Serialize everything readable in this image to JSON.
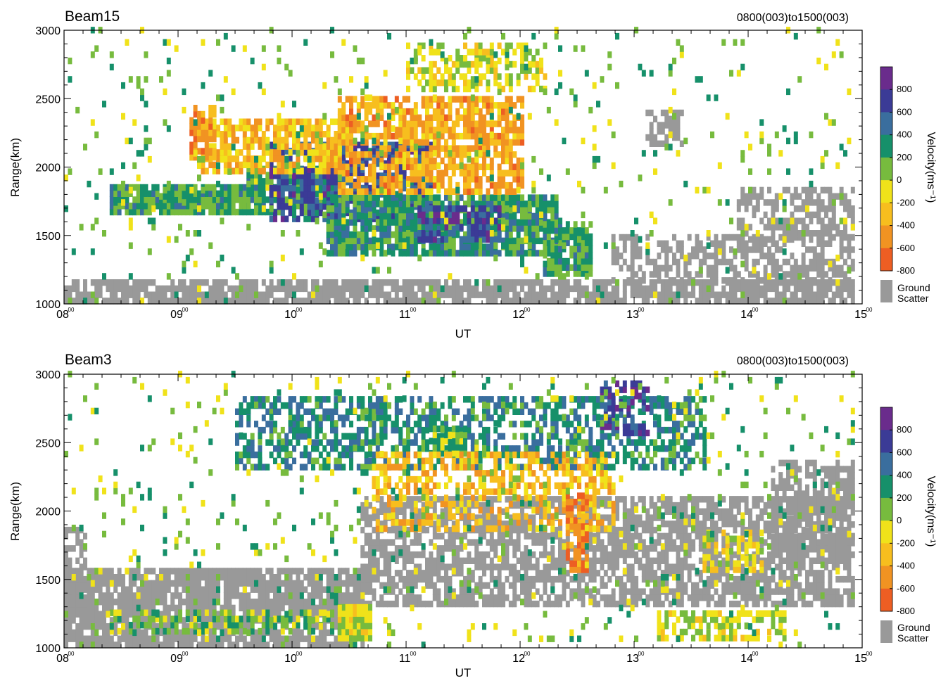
{
  "figure": {
    "panels": [
      {
        "beam_label": "Beam15",
        "time_range_label": "0800(003)to1500(003)"
      },
      {
        "beam_label": "Beam3",
        "time_range_label": "0800(003)to1500(003)"
      }
    ],
    "xlabel": "UT",
    "ylabel": "Range(km)",
    "colorbar": {
      "label": "Velocity(ms⁻¹)",
      "ticks": [
        "800",
        "600",
        "400",
        "200",
        "0",
        "-200",
        "-400",
        "-600",
        "-800"
      ],
      "colors": [
        "#6a2c8c",
        "#3b3b96",
        "#3a6e9e",
        "#16906a",
        "#77bb3e",
        "#f0e21a",
        "#f7be1e",
        "#f19322",
        "#ed5e23"
      ],
      "ground_scatter_label_1": "Ground",
      "ground_scatter_label_2": "Scatter",
      "ground_scatter_color": "#999999"
    }
  },
  "chart_data": [
    {
      "type": "heatmap",
      "title": "Beam15",
      "subtitle": "0800(003)to1500(003)",
      "xlabel": "UT",
      "ylabel": "Range(km)",
      "xlim": [
        8,
        15
      ],
      "ylim": [
        1000,
        3000
      ],
      "xticks": [
        "08",
        "09",
        "10",
        "11",
        "12",
        "13",
        "14",
        "15"
      ],
      "yticks": [
        1000,
        1500,
        2000,
        2500,
        3000
      ],
      "description_values": "approximate scatter regions (UT hours, km, velocity m/s or ground scatter)",
      "regions": [
        {
          "kind": "ground",
          "x": [
            8.0,
            14.9
          ],
          "y": [
            1000,
            1180
          ],
          "density": 0.8
        },
        {
          "kind": "ground",
          "x": [
            12.8,
            14.9
          ],
          "y": [
            1150,
            1500
          ],
          "density": 0.55
        },
        {
          "kind": "ground",
          "x": [
            13.9,
            14.9
          ],
          "y": [
            1450,
            1850
          ],
          "density": 0.6
        },
        {
          "kind": "ground",
          "x": [
            13.1,
            13.4
          ],
          "y": [
            2150,
            2400
          ],
          "density": 0.6
        },
        {
          "kind": "velocity",
          "v": 150,
          "x": [
            8.4,
            9.6
          ],
          "y": [
            1650,
            1850
          ],
          "density": 0.9
        },
        {
          "kind": "velocity",
          "v": 100,
          "x": [
            9.6,
            10.4
          ],
          "y": [
            1650,
            2000
          ],
          "density": 0.85
        },
        {
          "kind": "velocity",
          "v": 550,
          "x": [
            9.8,
            11.2
          ],
          "y": [
            1600,
            2150
          ],
          "density": 0.8
        },
        {
          "kind": "velocity",
          "v": 220,
          "x": [
            10.3,
            12.3
          ],
          "y": [
            1350,
            1800
          ],
          "density": 0.85
        },
        {
          "kind": "velocity",
          "v": 600,
          "x": [
            11.1,
            11.8
          ],
          "y": [
            1450,
            1700
          ],
          "density": 0.7
        },
        {
          "kind": "velocity",
          "v": 180,
          "x": [
            12.2,
            12.6
          ],
          "y": [
            1200,
            1600
          ],
          "density": 0.9
        },
        {
          "kind": "velocity",
          "v": -450,
          "x": [
            9.2,
            10.4
          ],
          "y": [
            1950,
            2350
          ],
          "density": 0.7
        },
        {
          "kind": "velocity",
          "v": -550,
          "x": [
            10.4,
            12.0
          ],
          "y": [
            1800,
            2500
          ],
          "density": 0.7
        },
        {
          "kind": "velocity",
          "v": -200,
          "x": [
            11.0,
            12.2
          ],
          "y": [
            2550,
            2900
          ],
          "density": 0.5
        },
        {
          "kind": "velocity",
          "v": -650,
          "x": [
            9.1,
            9.3
          ],
          "y": [
            2050,
            2450
          ],
          "density": 0.7
        },
        {
          "kind": "velocity",
          "v": 0,
          "x": [
            8.0,
            14.9
          ],
          "y": [
            1000,
            3000
          ],
          "density": 0.05
        }
      ]
    },
    {
      "type": "heatmap",
      "title": "Beam3",
      "subtitle": "0800(003)to1500(003)",
      "xlabel": "UT",
      "ylabel": "Range(km)",
      "xlim": [
        8,
        15
      ],
      "ylim": [
        1000,
        3000
      ],
      "xticks": [
        "08",
        "09",
        "10",
        "11",
        "12",
        "13",
        "14",
        "15"
      ],
      "yticks": [
        1000,
        1500,
        2000,
        2500,
        3000
      ],
      "description_values": "approximate scatter regions (UT hours, km, velocity m/s or ground scatter)",
      "regions": [
        {
          "kind": "ground",
          "x": [
            8.0,
            10.6
          ],
          "y": [
            1000,
            1550
          ],
          "density": 0.85
        },
        {
          "kind": "ground",
          "x": [
            10.6,
            14.9
          ],
          "y": [
            1300,
            2100
          ],
          "density": 0.7
        },
        {
          "kind": "ground",
          "x": [
            8.0,
            8.2
          ],
          "y": [
            1300,
            1850
          ],
          "density": 0.7
        },
        {
          "kind": "ground",
          "x": [
            14.2,
            14.9
          ],
          "y": [
            1700,
            2350
          ],
          "density": 0.65
        },
        {
          "kind": "velocity",
          "v": 0,
          "x": [
            8.4,
            10.6
          ],
          "y": [
            1100,
            1250
          ],
          "density": 0.5
        },
        {
          "kind": "velocity",
          "v": -150,
          "x": [
            10.4,
            10.7
          ],
          "y": [
            1050,
            1300
          ],
          "density": 0.9
        },
        {
          "kind": "velocity",
          "v": -150,
          "x": [
            13.2,
            14.3
          ],
          "y": [
            1050,
            1250
          ],
          "density": 0.6
        },
        {
          "kind": "velocity",
          "v": 300,
          "x": [
            9.5,
            13.6
          ],
          "y": [
            2300,
            2800
          ],
          "density": 0.55
        },
        {
          "kind": "velocity",
          "v": 700,
          "x": [
            12.7,
            13.1
          ],
          "y": [
            2550,
            2950
          ],
          "density": 0.6
        },
        {
          "kind": "velocity",
          "v": 50,
          "x": [
            11.2,
            11.5
          ],
          "y": [
            2400,
            2600
          ],
          "density": 0.85
        },
        {
          "kind": "velocity",
          "v": -450,
          "x": [
            10.7,
            12.8
          ],
          "y": [
            1850,
            2400
          ],
          "density": 0.45
        },
        {
          "kind": "velocity",
          "v": -700,
          "x": [
            12.4,
            12.6
          ],
          "y": [
            1550,
            2100
          ],
          "density": 0.7
        },
        {
          "kind": "velocity",
          "v": -250,
          "x": [
            13.6,
            14.1
          ],
          "y": [
            1550,
            1850
          ],
          "density": 0.5
        },
        {
          "kind": "velocity",
          "v": 0,
          "x": [
            8.0,
            14.9
          ],
          "y": [
            1000,
            3000
          ],
          "density": 0.06
        }
      ]
    }
  ]
}
